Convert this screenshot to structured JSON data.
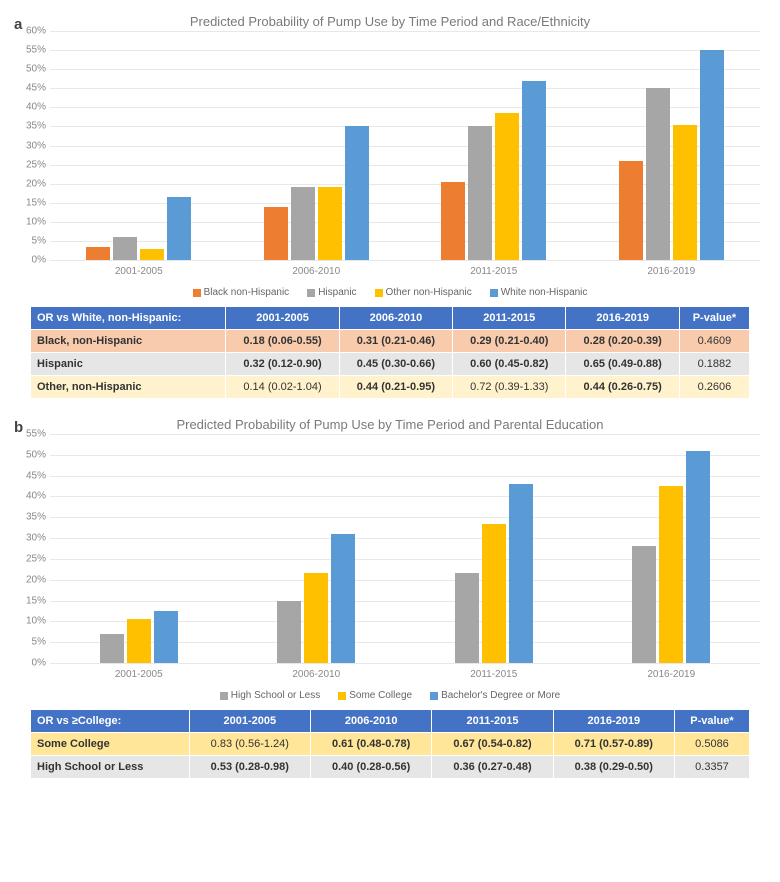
{
  "panel_a": {
    "label": "a",
    "title": "Predicted Probability of Pump Use by Time Period and Race/Ethnicity",
    "ymax": 60,
    "ytick_step": 5,
    "categories": [
      "2001-2005",
      "2006-2010",
      "2011-2015",
      "2016-2019"
    ],
    "series": [
      {
        "name": "Black non-Hispanic",
        "color": "#ed7d31",
        "values": [
          3.5,
          14,
          20.5,
          26
        ]
      },
      {
        "name": "Hispanic",
        "color": "#a6a6a6",
        "values": [
          6,
          19,
          35,
          45
        ]
      },
      {
        "name": "Other non-Hispanic",
        "color": "#ffc000",
        "values": [
          3,
          19,
          38.5,
          35.5
        ]
      },
      {
        "name": "White non-Hispanic",
        "color": "#5b9bd5",
        "values": [
          16.5,
          35,
          47,
          55
        ]
      }
    ],
    "table": {
      "header_bg": "#4472c4",
      "header": [
        "OR vs White, non-Hispanic:",
        "2001-2005",
        "2006-2010",
        "2011-2015",
        "2016-2019",
        "P-value*"
      ],
      "rows": [
        {
          "bg": "#f8cbad",
          "label": "Black, non-Hispanic",
          "cells": [
            {
              "text": "0.18 (0.06-0.55)",
              "bold": true
            },
            {
              "text": "0.31 (0.21-0.46)",
              "bold": true
            },
            {
              "text": "0.29 (0.21-0.40)",
              "bold": true
            },
            {
              "text": "0.28 (0.20-0.39)",
              "bold": true
            },
            {
              "text": "0.4609",
              "bold": false
            }
          ]
        },
        {
          "bg": "#e7e6e6",
          "label": "Hispanic",
          "cells": [
            {
              "text": "0.32 (0.12-0.90)",
              "bold": true
            },
            {
              "text": "0.45 (0.30-0.66)",
              "bold": true
            },
            {
              "text": "0.60 (0.45-0.82)",
              "bold": true
            },
            {
              "text": "0.65 (0.49-0.88)",
              "bold": true
            },
            {
              "text": "0.1882",
              "bold": false
            }
          ]
        },
        {
          "bg": "#fff2cc",
          "label": "Other, non-Hispanic",
          "cells": [
            {
              "text": "0.14 (0.02-1.04)",
              "bold": false
            },
            {
              "text": "0.44 (0.21-0.95)",
              "bold": true
            },
            {
              "text": "0.72 (0.39-1.33)",
              "bold": false
            },
            {
              "text": "0.44 (0.26-0.75)",
              "bold": true
            },
            {
              "text": "0.2606",
              "bold": false
            }
          ]
        }
      ]
    }
  },
  "panel_b": {
    "label": "b",
    "title": "Predicted Probability of Pump Use by Time Period and Parental Education",
    "ymax": 55,
    "ytick_step": 5,
    "categories": [
      "2001-2005",
      "2006-2010",
      "2011-2015",
      "2016-2019"
    ],
    "series": [
      {
        "name": "High School or Less",
        "color": "#a6a6a6",
        "values": [
          7,
          15,
          21.5,
          28
        ]
      },
      {
        "name": "Some College",
        "color": "#ffc000",
        "values": [
          10.5,
          21.5,
          33.5,
          42.5
        ]
      },
      {
        "name": "Bachelor's Degree or More",
        "color": "#5b9bd5",
        "values": [
          12.5,
          31,
          43,
          51
        ]
      }
    ],
    "table": {
      "header_bg": "#4472c4",
      "header": [
        "OR vs ≥College:",
        "2001-2005",
        "2006-2010",
        "2011-2015",
        "2016-2019",
        "P-value*"
      ],
      "rows": [
        {
          "bg": "#ffe699",
          "label": "Some College",
          "cells": [
            {
              "text": "0.83 (0.56-1.24)",
              "bold": false
            },
            {
              "text": "0.61 (0.48-0.78)",
              "bold": true
            },
            {
              "text": "0.67 (0.54-0.82)",
              "bold": true
            },
            {
              "text": "0.71 (0.57-0.89)",
              "bold": true
            },
            {
              "text": "0.5086",
              "bold": false
            }
          ]
        },
        {
          "bg": "#e7e6e6",
          "label": "High School or Less",
          "cells": [
            {
              "text": "0.53 (0.28-0.98)",
              "bold": true
            },
            {
              "text": "0.40 (0.28-0.56)",
              "bold": true
            },
            {
              "text": "0.36 (0.27-0.48)",
              "bold": true
            },
            {
              "text": "0.38 (0.29-0.50)",
              "bold": true
            },
            {
              "text": "0.3357",
              "bold": false
            }
          ]
        }
      ]
    }
  }
}
